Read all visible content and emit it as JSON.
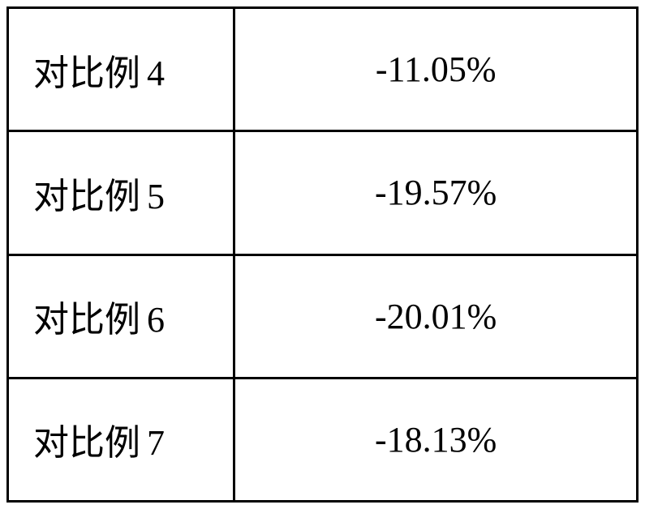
{
  "table": {
    "rows": [
      {
        "label_prefix": "对比例",
        "label_num": "4",
        "value": "-11.05%"
      },
      {
        "label_prefix": "对比例",
        "label_num": "5",
        "value": "-19.57%"
      },
      {
        "label_prefix": "对比例",
        "label_num": "6",
        "value": "-20.01%"
      },
      {
        "label_prefix": "对比例",
        "label_num": "7",
        "value": "-18.13%"
      }
    ],
    "styling": {
      "border_color": "#000000",
      "border_width": 3,
      "background_color": "#ffffff",
      "text_color": "#000000",
      "font_size_pt": 33,
      "label_column_width_pct": 36,
      "value_column_width_pct": 64,
      "label_align": "left",
      "value_align": "center",
      "label_font_family": "SimSun",
      "value_font_family": "Times New Roman"
    }
  }
}
